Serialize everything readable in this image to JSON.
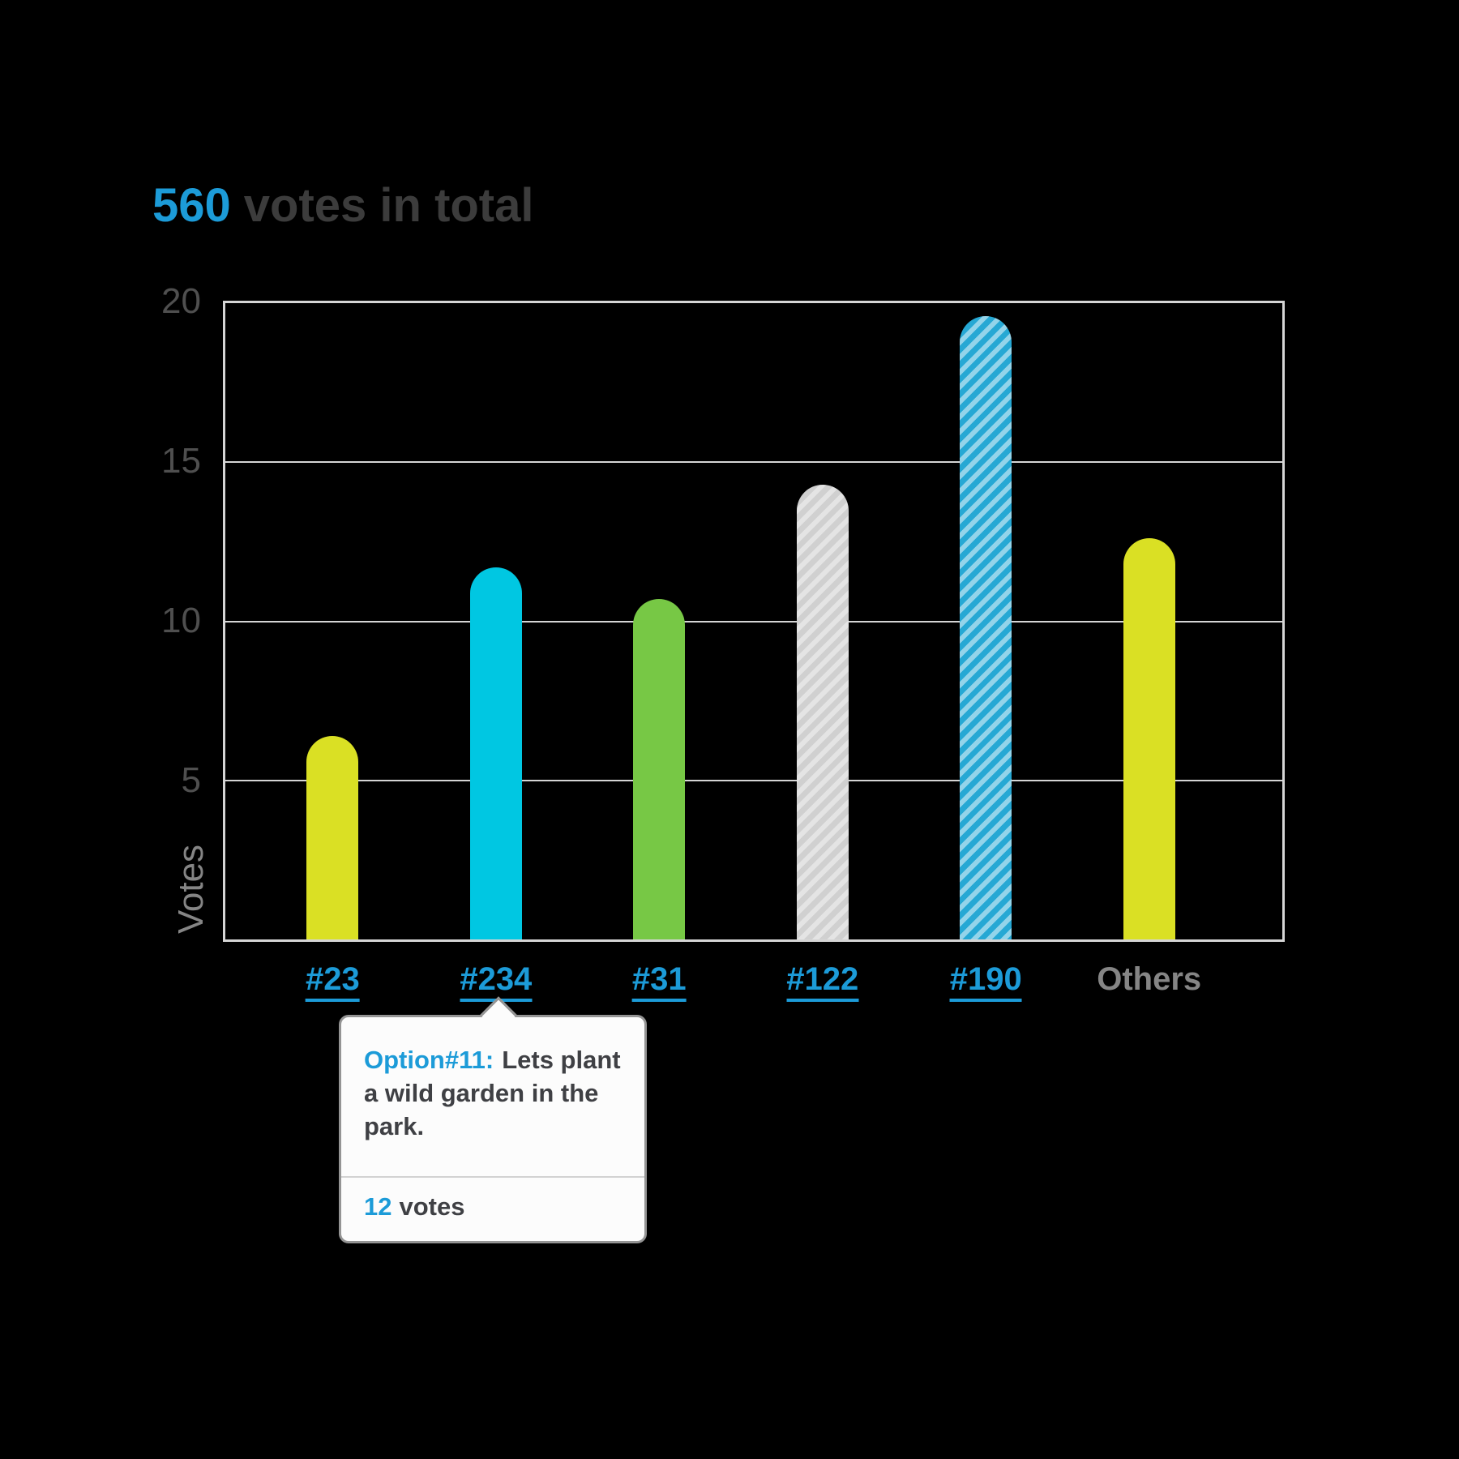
{
  "title": {
    "count": "560",
    "text": "votes in total"
  },
  "y_axis": {
    "label": "Votes",
    "ticks": [
      "20",
      "15",
      "10",
      "5"
    ]
  },
  "x_axis": {
    "labels": [
      {
        "text": "#23",
        "link": true
      },
      {
        "text": "#234",
        "link": true
      },
      {
        "text": "#31",
        "link": true
      },
      {
        "text": "#122",
        "link": true
      },
      {
        "text": "#190",
        "link": true
      },
      {
        "text": "Others",
        "link": false
      }
    ]
  },
  "tooltip": {
    "target": "#234",
    "option_label": "Option#11:",
    "option_text": "Lets plant a wild garden in the park.",
    "votes_count": "12",
    "votes_word": "votes"
  },
  "chart_data": {
    "type": "bar",
    "title": "560 votes in total",
    "xlabel": "",
    "ylabel": "Votes",
    "ylim": [
      0,
      20
    ],
    "yticks": [
      5,
      10,
      15,
      20
    ],
    "grid": "horizontal-only",
    "legend": "none",
    "categories": [
      "#23",
      "#234",
      "#31",
      "#122",
      "#190",
      "Others"
    ],
    "values": [
      6.4,
      11.7,
      10.7,
      14.3,
      19.6,
      12.6
    ],
    "annotations": [
      {
        "category": "#234",
        "text": "Option#11: Lets plant a wild garden in the park.",
        "votes": 12
      }
    ],
    "bar_styles": [
      {
        "fill": "#dae024",
        "pattern": "solid"
      },
      {
        "fill": "#00c7e2",
        "pattern": "solid"
      },
      {
        "fill": "#77c845",
        "pattern": "solid"
      },
      {
        "fill": "#d0d0d0",
        "pattern": "diagonal-stripes",
        "stripe": "#e4e4e4"
      },
      {
        "fill": "#26a8d4",
        "pattern": "diagonal-stripes",
        "stripe": "#93d4ea"
      },
      {
        "fill": "#dae024",
        "pattern": "solid"
      }
    ]
  },
  "colors": {
    "accent_blue": "#1c9bd8",
    "title_gray": "#3c3c3c",
    "tick_gray": "#4f4f4f",
    "muted_gray": "#858585",
    "grid_gray": "#d5d5d5",
    "tooltip_bg": "#fcfcfc",
    "tooltip_border": "#949494",
    "tooltip_text": "#3f4044"
  }
}
